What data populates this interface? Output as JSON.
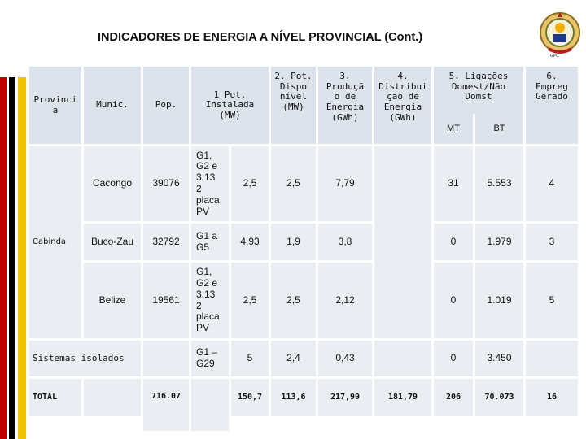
{
  "title": "INDICADORES DE ENERGIA A NÍVEL PROVINCIAL (Cont.)",
  "logo_caption": "GPC",
  "colors": {
    "stripe_red": "#c00000",
    "stripe_black": "#000000",
    "stripe_yellow": "#f2c200",
    "table_bg": "#dde3ea"
  },
  "headers": {
    "provincia": "Provinci\na",
    "munic": "Munic.",
    "pop": "Pop.",
    "pot_instalada": "1 Pot.\nInstalada\n(MW)",
    "pot_disponivel": "2. Pot.\nDispo\nnível\n(MW)",
    "producao": "3.\nProduçã\no de\nEnergia\n(GWh)",
    "distribuicao": "4.\nDistribui\nção de\nEnergia\n(GWh)",
    "ligacoes": "5. Ligações\nDomest/Não\nDomst",
    "mt": "MT",
    "bt": "BT",
    "emprego": "6.\nEmpreg\nGerado"
  },
  "province": "Cabinda",
  "rows": [
    {
      "munic": "Cacongo",
      "pop": "39076",
      "tipo": "G1,\nG2 e\n3.13\n2\nplaca\nPV",
      "pot_inst": "2,5",
      "pot_disp": "2,5",
      "prod": "7,79",
      "dist": "",
      "mt": "31",
      "bt": "5.553",
      "emp": "4"
    },
    {
      "munic": "Buco-Zau",
      "pop": "32792",
      "tipo": "G1 a\nG5",
      "pot_inst": "4,93",
      "pot_disp": "1,9",
      "prod": "3,8",
      "dist": "",
      "mt": "0",
      "bt": "1.979",
      "emp": "3"
    },
    {
      "munic": "Belize",
      "pop": "19561",
      "tipo": "G1,\nG2 e\n3.13\n2\nplaca\nPV",
      "pot_inst": "2,5",
      "pot_disp": "2,5",
      "prod": "2,12",
      "dist": "",
      "mt": "0",
      "bt": "1.019",
      "emp": "5"
    }
  ],
  "isolados": {
    "label": "Sistemas isolados",
    "tipo": "G1 –\nG29",
    "pot_inst": "5",
    "pot_disp": "2,4",
    "prod": "0,43",
    "mt": "0",
    "bt": "3.450"
  },
  "total": {
    "label": "TOTAL",
    "pop": "716.07",
    "pot_inst": "150,7",
    "pot_disp": "113,6",
    "prod": "217,99",
    "dist": "181,79",
    "mt": "206",
    "bt": "70.073",
    "emp": "16"
  }
}
